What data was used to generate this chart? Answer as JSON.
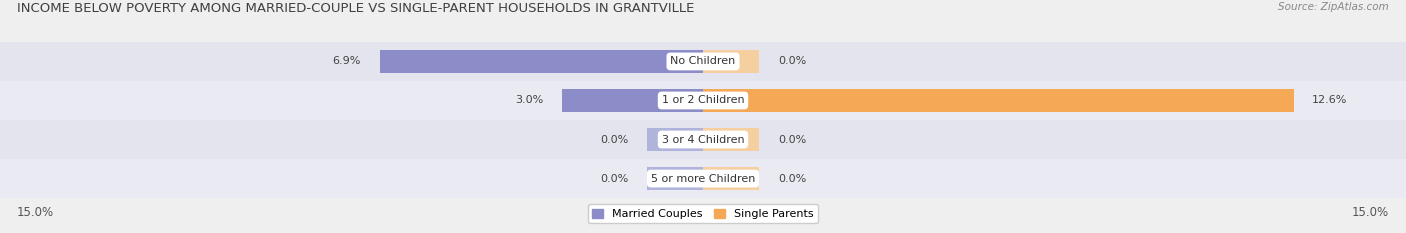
{
  "title": "INCOME BELOW POVERTY AMONG MARRIED-COUPLE VS SINGLE-PARENT HOUSEHOLDS IN GRANTVILLE",
  "source": "Source: ZipAtlas.com",
  "categories": [
    "No Children",
    "1 or 2 Children",
    "3 or 4 Children",
    "5 or more Children"
  ],
  "married_values": [
    6.9,
    3.0,
    0.0,
    0.0
  ],
  "single_values": [
    0.0,
    12.6,
    0.0,
    0.0
  ],
  "x_max": 15.0,
  "married_color": "#8b8cc8",
  "single_color": "#f5a855",
  "single_color_light": "#f5cfa0",
  "married_color_light": "#b0b3dc",
  "bg_color": "#efefef",
  "bar_row_bg": "#e4e4ee",
  "bar_row_bg_alt": "#eaeaf2",
  "title_fontsize": 9.5,
  "tick_fontsize": 8.5,
  "label_fontsize": 8,
  "legend_fontsize": 8,
  "source_fontsize": 7.5,
  "min_bar_width": 1.2
}
